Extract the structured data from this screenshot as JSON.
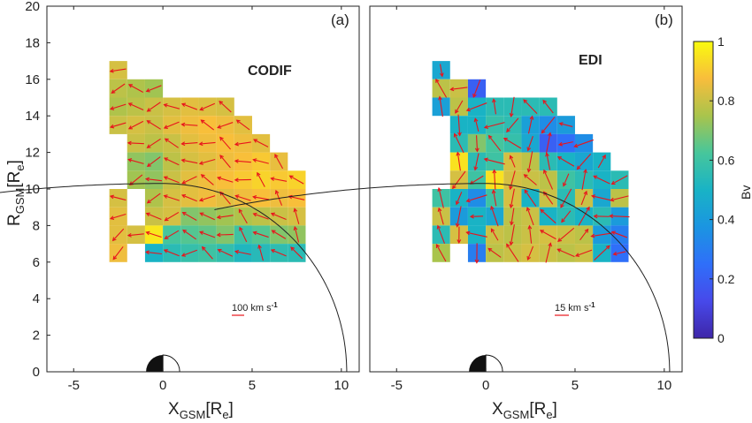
{
  "figure": {
    "panels": [
      {
        "label": "(a)",
        "title": "CODIF",
        "scale_label": "100 km s"
      },
      {
        "label": "(b)",
        "title": "EDI",
        "scale_label": "15 km s"
      }
    ],
    "scale_exponent": "-1",
    "x_label_main": "X",
    "x_label_sub": "GSM",
    "x_label_unit": "[R",
    "x_label_unit_sub": "e",
    "x_label_close": "]",
    "y_label_main": "R",
    "y_label_sub": "GSM",
    "y_label_unit": "[R",
    "y_label_unit_sub": "e",
    "y_label_close": "]",
    "colorbar": {
      "label": "Bv",
      "ticks": [
        "0",
        "0.2",
        "0.4",
        "0.6",
        "0.8",
        "1"
      ]
    },
    "colors": {
      "arrow": "#e8141c",
      "boundary": "#222222"
    }
  },
  "chart_data": [
    {
      "type": "heatmap",
      "title": "CODIF",
      "xlabel": "XGSM[Re]",
      "ylabel": "RGSM[Re]",
      "xlim": [
        -6.5,
        11
      ],
      "ylim": [
        0,
        20
      ],
      "x_ticks": [
        "-5",
        "0",
        "5",
        "10"
      ],
      "y_ticks": [
        "0",
        "2",
        "4",
        "6",
        "8",
        "10",
        "12",
        "14",
        "16",
        "18",
        "20"
      ],
      "cell_size": 1,
      "colorbar_range": [
        0,
        1
      ],
      "boundary_radius": 10.3,
      "cells": [
        {
          "x": -2.5,
          "y": 16.5,
          "v": 0.82
        },
        {
          "x": -2.5,
          "y": 15.5,
          "v": 0.78
        },
        {
          "x": -1.5,
          "y": 15.5,
          "v": 0.76
        },
        {
          "x": -0.5,
          "y": 15.5,
          "v": 0.74
        },
        {
          "x": -2.5,
          "y": 14.5,
          "v": 0.76
        },
        {
          "x": -1.5,
          "y": 14.5,
          "v": 0.78
        },
        {
          "x": -0.5,
          "y": 14.5,
          "v": 0.8
        },
        {
          "x": 0.5,
          "y": 14.5,
          "v": 0.82
        },
        {
          "x": 1.5,
          "y": 14.5,
          "v": 0.84
        },
        {
          "x": 2.5,
          "y": 14.5,
          "v": 0.83
        },
        {
          "x": 3.5,
          "y": 14.5,
          "v": 0.82
        },
        {
          "x": -2.5,
          "y": 13.5,
          "v": 0.8
        },
        {
          "x": -1.5,
          "y": 13.5,
          "v": 0.82
        },
        {
          "x": -0.5,
          "y": 13.5,
          "v": 0.8
        },
        {
          "x": 0.5,
          "y": 13.5,
          "v": 0.84
        },
        {
          "x": 1.5,
          "y": 13.5,
          "v": 0.86
        },
        {
          "x": 2.5,
          "y": 13.5,
          "v": 0.88
        },
        {
          "x": 3.5,
          "y": 13.5,
          "v": 0.86
        },
        {
          "x": 4.5,
          "y": 13.5,
          "v": 0.84
        },
        {
          "x": -1.5,
          "y": 12.5,
          "v": 0.8
        },
        {
          "x": -0.5,
          "y": 12.5,
          "v": 0.78
        },
        {
          "x": 0.5,
          "y": 12.5,
          "v": 0.8
        },
        {
          "x": 1.5,
          "y": 12.5,
          "v": 0.84
        },
        {
          "x": 2.5,
          "y": 12.5,
          "v": 0.86
        },
        {
          "x": 3.5,
          "y": 12.5,
          "v": 0.88
        },
        {
          "x": 4.5,
          "y": 12.5,
          "v": 0.86
        },
        {
          "x": 5.5,
          "y": 12.5,
          "v": 0.84
        },
        {
          "x": -1.5,
          "y": 11.5,
          "v": 0.72
        },
        {
          "x": -0.5,
          "y": 11.5,
          "v": 0.7
        },
        {
          "x": 0.5,
          "y": 11.5,
          "v": 0.78
        },
        {
          "x": 1.5,
          "y": 11.5,
          "v": 0.82
        },
        {
          "x": 2.5,
          "y": 11.5,
          "v": 0.84
        },
        {
          "x": 3.5,
          "y": 11.5,
          "v": 0.86
        },
        {
          "x": 4.5,
          "y": 11.5,
          "v": 0.88
        },
        {
          "x": 5.5,
          "y": 11.5,
          "v": 0.9
        },
        {
          "x": 6.5,
          "y": 11.5,
          "v": 0.85
        },
        {
          "x": -1.5,
          "y": 10.5,
          "v": 0.74
        },
        {
          "x": -0.5,
          "y": 10.5,
          "v": 0.72
        },
        {
          "x": 0.5,
          "y": 10.5,
          "v": 0.8
        },
        {
          "x": 1.5,
          "y": 10.5,
          "v": 0.84
        },
        {
          "x": 2.5,
          "y": 10.5,
          "v": 0.86
        },
        {
          "x": 3.5,
          "y": 10.5,
          "v": 0.88
        },
        {
          "x": 4.5,
          "y": 10.5,
          "v": 0.9
        },
        {
          "x": 5.5,
          "y": 10.5,
          "v": 0.92
        },
        {
          "x": 6.5,
          "y": 10.5,
          "v": 0.9
        },
        {
          "x": 7.5,
          "y": 10.5,
          "v": 0.92
        },
        {
          "x": -2.5,
          "y": 9.5,
          "v": 0.82
        },
        {
          "x": -0.5,
          "y": 9.5,
          "v": 0.76
        },
        {
          "x": 0.5,
          "y": 9.5,
          "v": 0.82
        },
        {
          "x": 1.5,
          "y": 9.5,
          "v": 0.84
        },
        {
          "x": 2.5,
          "y": 9.5,
          "v": 0.86
        },
        {
          "x": 3.5,
          "y": 9.5,
          "v": 0.84
        },
        {
          "x": 4.5,
          "y": 9.5,
          "v": 0.86
        },
        {
          "x": 5.5,
          "y": 9.5,
          "v": 0.88
        },
        {
          "x": 6.5,
          "y": 9.5,
          "v": 0.86
        },
        {
          "x": 7.5,
          "y": 9.5,
          "v": 0.88
        },
        {
          "x": -2.5,
          "y": 8.5,
          "v": 0.84
        },
        {
          "x": -0.5,
          "y": 8.5,
          "v": 0.8
        },
        {
          "x": 0.5,
          "y": 8.5,
          "v": 0.82
        },
        {
          "x": 1.5,
          "y": 8.5,
          "v": 0.7
        },
        {
          "x": 2.5,
          "y": 8.5,
          "v": 0.72
        },
        {
          "x": 3.5,
          "y": 8.5,
          "v": 0.74
        },
        {
          "x": 4.5,
          "y": 8.5,
          "v": 0.76
        },
        {
          "x": 5.5,
          "y": 8.5,
          "v": 0.78
        },
        {
          "x": 6.5,
          "y": 8.5,
          "v": 0.8
        },
        {
          "x": 7.5,
          "y": 8.5,
          "v": 0.82
        },
        {
          "x": -2.5,
          "y": 7.5,
          "v": 0.84
        },
        {
          "x": -1.5,
          "y": 7.5,
          "v": 0.82
        },
        {
          "x": -0.5,
          "y": 7.5,
          "v": 0.96
        },
        {
          "x": 0.5,
          "y": 7.5,
          "v": 0.62
        },
        {
          "x": 1.5,
          "y": 7.5,
          "v": 0.64
        },
        {
          "x": 2.5,
          "y": 7.5,
          "v": 0.66
        },
        {
          "x": 3.5,
          "y": 7.5,
          "v": 0.7
        },
        {
          "x": 4.5,
          "y": 7.5,
          "v": 0.6
        },
        {
          "x": 5.5,
          "y": 7.5,
          "v": 0.64
        },
        {
          "x": 6.5,
          "y": 7.5,
          "v": 0.7
        },
        {
          "x": 7.5,
          "y": 7.5,
          "v": 0.72
        },
        {
          "x": -2.5,
          "y": 6.5,
          "v": 0.86
        },
        {
          "x": -0.5,
          "y": 6.5,
          "v": 0.5
        },
        {
          "x": 0.5,
          "y": 6.5,
          "v": 0.55
        },
        {
          "x": 1.5,
          "y": 6.5,
          "v": 0.58
        },
        {
          "x": 2.5,
          "y": 6.5,
          "v": 0.6
        },
        {
          "x": 3.5,
          "y": 6.5,
          "v": 0.57
        },
        {
          "x": 4.5,
          "y": 6.5,
          "v": 0.52
        },
        {
          "x": 5.5,
          "y": 6.5,
          "v": 0.54
        },
        {
          "x": 6.5,
          "y": 6.5,
          "v": 0.56
        },
        {
          "x": 7.5,
          "y": 6.5,
          "v": 0.55
        }
      ]
    },
    {
      "type": "heatmap",
      "title": "EDI",
      "xlabel": "XGSM[Re]",
      "ylabel": "RGSM[Re]",
      "xlim": [
        -6.5,
        11
      ],
      "ylim": [
        0,
        20
      ],
      "x_ticks": [
        "-5",
        "0",
        "5",
        "10"
      ],
      "y_ticks": [
        "0",
        "2",
        "4",
        "6",
        "8",
        "10",
        "12",
        "14",
        "16",
        "18",
        "20"
      ],
      "cell_size": 1,
      "colorbar_range": [
        0,
        1
      ],
      "boundary_radius": 10.3,
      "cells": [
        {
          "x": -2.5,
          "y": 16.5,
          "v": 0.45
        },
        {
          "x": -2.5,
          "y": 15.5,
          "v": 0.78
        },
        {
          "x": -1.5,
          "y": 15.5,
          "v": 0.8
        },
        {
          "x": -0.5,
          "y": 15.5,
          "v": 0.2
        },
        {
          "x": -2.5,
          "y": 14.5,
          "v": 0.42
        },
        {
          "x": -1.5,
          "y": 14.5,
          "v": 0.78
        },
        {
          "x": -0.5,
          "y": 14.5,
          "v": 0.5
        },
        {
          "x": 0.5,
          "y": 14.5,
          "v": 0.55
        },
        {
          "x": 1.5,
          "y": 14.5,
          "v": 0.55
        },
        {
          "x": 2.5,
          "y": 14.5,
          "v": 0.55
        },
        {
          "x": 3.5,
          "y": 14.5,
          "v": 0.55
        },
        {
          "x": -1.5,
          "y": 13.5,
          "v": 0.5
        },
        {
          "x": -0.5,
          "y": 13.5,
          "v": 0.5
        },
        {
          "x": 0.5,
          "y": 13.5,
          "v": 0.58
        },
        {
          "x": 1.5,
          "y": 13.5,
          "v": 0.56
        },
        {
          "x": 2.5,
          "y": 13.5,
          "v": 0.42
        },
        {
          "x": 3.5,
          "y": 13.5,
          "v": 0.35
        },
        {
          "x": 4.5,
          "y": 13.5,
          "v": 0.4
        },
        {
          "x": -1.5,
          "y": 12.5,
          "v": 0.55
        },
        {
          "x": -0.5,
          "y": 12.5,
          "v": 0.7
        },
        {
          "x": 0.5,
          "y": 12.5,
          "v": 0.62
        },
        {
          "x": 1.5,
          "y": 12.5,
          "v": 0.58
        },
        {
          "x": 2.5,
          "y": 12.5,
          "v": 0.45
        },
        {
          "x": 3.5,
          "y": 12.5,
          "v": 0.2
        },
        {
          "x": 4.5,
          "y": 12.5,
          "v": 0.25
        },
        {
          "x": 5.5,
          "y": 12.5,
          "v": 0.35
        },
        {
          "x": -1.5,
          "y": 11.5,
          "v": 0.95
        },
        {
          "x": -0.5,
          "y": 11.5,
          "v": 0.55
        },
        {
          "x": 0.5,
          "y": 11.5,
          "v": 0.6
        },
        {
          "x": 1.5,
          "y": 11.5,
          "v": 0.82
        },
        {
          "x": 2.5,
          "y": 11.5,
          "v": 0.78
        },
        {
          "x": 3.5,
          "y": 11.5,
          "v": 0.55
        },
        {
          "x": 4.5,
          "y": 11.5,
          "v": 0.5
        },
        {
          "x": 5.5,
          "y": 11.5,
          "v": 0.45
        },
        {
          "x": 6.5,
          "y": 11.5,
          "v": 0.5
        },
        {
          "x": -1.5,
          "y": 10.5,
          "v": 0.82
        },
        {
          "x": -0.5,
          "y": 10.5,
          "v": 0.6
        },
        {
          "x": 0.5,
          "y": 10.5,
          "v": 0.95
        },
        {
          "x": 1.5,
          "y": 10.5,
          "v": 0.82
        },
        {
          "x": 2.5,
          "y": 10.5,
          "v": 0.8
        },
        {
          "x": 3.5,
          "y": 10.5,
          "v": 0.78
        },
        {
          "x": 4.5,
          "y": 10.5,
          "v": 0.6
        },
        {
          "x": 5.5,
          "y": 10.5,
          "v": 0.55
        },
        {
          "x": 6.5,
          "y": 10.5,
          "v": 0.5
        },
        {
          "x": 7.5,
          "y": 10.5,
          "v": 0.55
        },
        {
          "x": -2.5,
          "y": 9.5,
          "v": 0.6
        },
        {
          "x": -1.5,
          "y": 9.5,
          "v": 0.5
        },
        {
          "x": -0.5,
          "y": 9.5,
          "v": 0.35
        },
        {
          "x": 0.5,
          "y": 9.5,
          "v": 0.6
        },
        {
          "x": 1.5,
          "y": 9.5,
          "v": 0.82
        },
        {
          "x": 2.5,
          "y": 9.5,
          "v": 0.5
        },
        {
          "x": 3.5,
          "y": 9.5,
          "v": 0.8
        },
        {
          "x": 4.5,
          "y": 9.5,
          "v": 0.55
        },
        {
          "x": 5.5,
          "y": 9.5,
          "v": 0.8
        },
        {
          "x": 6.5,
          "y": 9.5,
          "v": 0.45
        },
        {
          "x": 7.5,
          "y": 9.5,
          "v": 0.78
        },
        {
          "x": -2.5,
          "y": 8.5,
          "v": 0.8
        },
        {
          "x": -1.5,
          "y": 8.5,
          "v": 0.4
        },
        {
          "x": -0.5,
          "y": 8.5,
          "v": 0.5
        },
        {
          "x": 0.5,
          "y": 8.5,
          "v": 0.45
        },
        {
          "x": 1.5,
          "y": 8.5,
          "v": 0.78
        },
        {
          "x": 2.5,
          "y": 8.5,
          "v": 0.8
        },
        {
          "x": 3.5,
          "y": 8.5,
          "v": 0.5
        },
        {
          "x": 4.5,
          "y": 8.5,
          "v": 0.55
        },
        {
          "x": 5.5,
          "y": 8.5,
          "v": 0.5
        },
        {
          "x": 6.5,
          "y": 8.5,
          "v": 0.55
        },
        {
          "x": 7.5,
          "y": 8.5,
          "v": 0.4
        },
        {
          "x": -2.5,
          "y": 7.5,
          "v": 0.55
        },
        {
          "x": -1.5,
          "y": 7.5,
          "v": 0.82
        },
        {
          "x": -0.5,
          "y": 7.5,
          "v": 0.5
        },
        {
          "x": 0.5,
          "y": 7.5,
          "v": 0.8
        },
        {
          "x": 1.5,
          "y": 7.5,
          "v": 0.78
        },
        {
          "x": 2.5,
          "y": 7.5,
          "v": 0.8
        },
        {
          "x": 3.5,
          "y": 7.5,
          "v": 0.82
        },
        {
          "x": 4.5,
          "y": 7.5,
          "v": 0.8
        },
        {
          "x": 5.5,
          "y": 7.5,
          "v": 0.78
        },
        {
          "x": 6.5,
          "y": 7.5,
          "v": 0.4
        },
        {
          "x": 7.5,
          "y": 7.5,
          "v": 0.3
        },
        {
          "x": -2.5,
          "y": 6.5,
          "v": 0.75
        },
        {
          "x": -0.5,
          "y": 6.5,
          "v": 0.3
        },
        {
          "x": 0.5,
          "y": 6.5,
          "v": 0.78
        },
        {
          "x": 1.5,
          "y": 6.5,
          "v": 0.8
        },
        {
          "x": 2.5,
          "y": 6.5,
          "v": 0.82
        },
        {
          "x": 3.5,
          "y": 6.5,
          "v": 0.8
        },
        {
          "x": 4.5,
          "y": 6.5,
          "v": 0.78
        },
        {
          "x": 5.5,
          "y": 6.5,
          "v": 0.8
        },
        {
          "x": 6.5,
          "y": 6.5,
          "v": 0.5
        },
        {
          "x": 7.5,
          "y": 6.5,
          "v": 0.25
        }
      ]
    }
  ]
}
